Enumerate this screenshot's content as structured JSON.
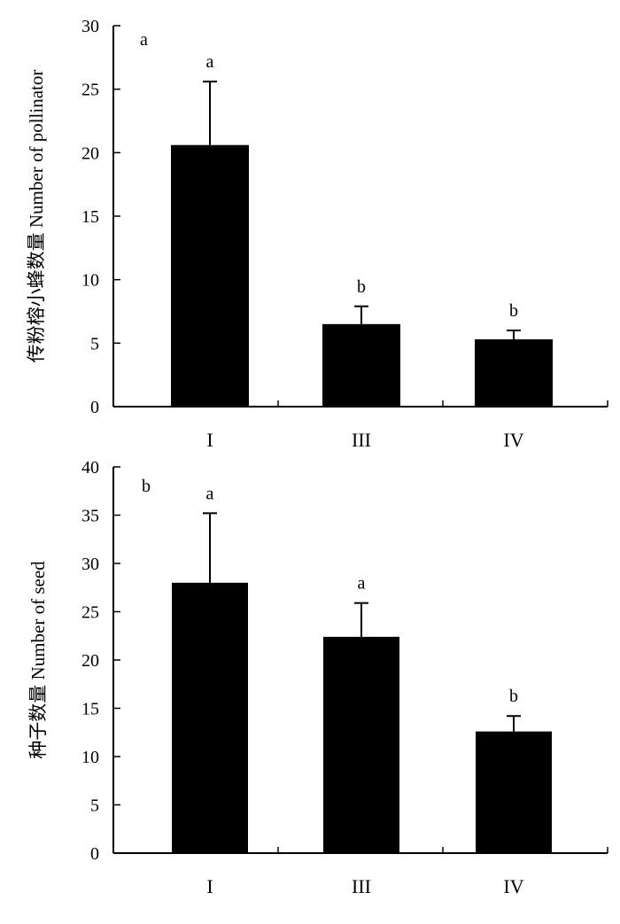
{
  "chart_data": [
    {
      "type": "bar",
      "panel_letter": "a",
      "ylabel": "传粉榕小蜂数量 Number of pollinator",
      "ylim": [
        0,
        30
      ],
      "yticks": [
        0,
        5,
        10,
        15,
        20,
        25,
        30
      ],
      "categories": [
        "I",
        "III",
        "IV"
      ],
      "values": [
        20.6,
        6.5,
        5.3
      ],
      "error_upper": [
        25.6,
        7.9,
        6.0
      ],
      "significance": [
        "a",
        "b",
        "b"
      ],
      "bar_color": "#000000"
    },
    {
      "type": "bar",
      "panel_letter": "b",
      "ylabel": "种子数量 Number of seed",
      "ylim": [
        0,
        40
      ],
      "yticks": [
        0,
        5,
        10,
        15,
        20,
        25,
        30,
        35,
        40
      ],
      "categories": [
        "I",
        "III",
        "IV"
      ],
      "values": [
        28.0,
        22.4,
        12.6
      ],
      "error_upper": [
        35.2,
        25.9,
        14.2
      ],
      "significance": [
        "a",
        "a",
        "b"
      ],
      "bar_color": "#000000"
    }
  ]
}
